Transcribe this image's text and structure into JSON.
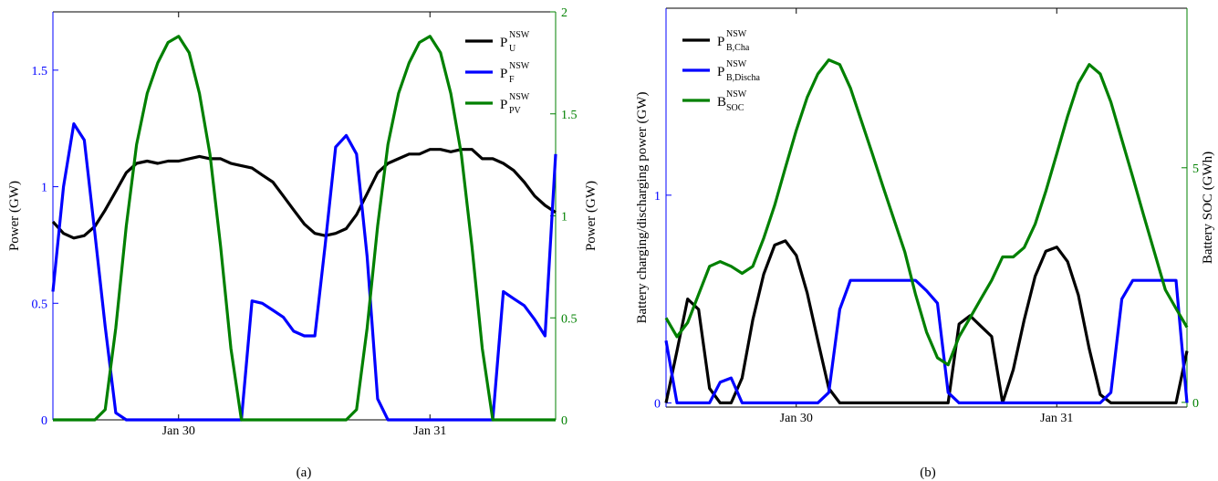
{
  "chart_data": [
    {
      "type": "line",
      "caption": "(a)",
      "x_ticks": [
        {
          "x": 30,
          "label": "Jan 30"
        },
        {
          "x": 31,
          "label": "Jan 31"
        }
      ],
      "xlim": [
        29.5,
        31.5
      ],
      "y_left": {
        "label": "Power (GW)",
        "lim": [
          0,
          1.75
        ],
        "ticks": [
          0,
          0.5,
          1,
          1.5
        ],
        "tick_labels": [
          "0",
          "0.5",
          "1",
          "1.5"
        ],
        "color": "#0000ff"
      },
      "y_right": {
        "label": "Power (GW)",
        "lim": [
          0,
          2
        ],
        "ticks": [
          0,
          0.5,
          1,
          1.5,
          2
        ],
        "tick_labels": [
          "0",
          "0.5",
          "1",
          "1.5",
          "2"
        ],
        "color": "#008000"
      },
      "legend_position": "top-right",
      "series": [
        {
          "key": "U",
          "base": "P",
          "sub": "U",
          "sup": "NSW",
          "color": "#000000",
          "axis": "left",
          "x": [
            29.5,
            29.542,
            29.583,
            29.625,
            29.667,
            29.708,
            29.75,
            29.792,
            29.833,
            29.875,
            29.917,
            29.958,
            30.0,
            30.042,
            30.083,
            30.125,
            30.167,
            30.208,
            30.25,
            30.292,
            30.333,
            30.375,
            30.417,
            30.458,
            30.5,
            30.542,
            30.583,
            30.625,
            30.667,
            30.708,
            30.75,
            30.792,
            30.833,
            30.875,
            30.917,
            30.958,
            31.0,
            31.042,
            31.083,
            31.125,
            31.167,
            31.208,
            31.25,
            31.292,
            31.333,
            31.375,
            31.417,
            31.458,
            31.5
          ],
          "y": [
            0.85,
            0.8,
            0.78,
            0.79,
            0.83,
            0.9,
            0.98,
            1.06,
            1.1,
            1.11,
            1.1,
            1.11,
            1.11,
            1.12,
            1.13,
            1.12,
            1.12,
            1.1,
            1.09,
            1.08,
            1.05,
            1.02,
            0.96,
            0.9,
            0.84,
            0.8,
            0.79,
            0.8,
            0.82,
            0.88,
            0.97,
            1.06,
            1.1,
            1.12,
            1.14,
            1.14,
            1.16,
            1.16,
            1.15,
            1.16,
            1.16,
            1.12,
            1.12,
            1.1,
            1.07,
            1.02,
            0.96,
            0.92,
            0.89
          ]
        },
        {
          "key": "F",
          "base": "P",
          "sub": "F",
          "sup": "NSW",
          "color": "#0000ff",
          "axis": "left",
          "x": [
            29.5,
            29.542,
            29.583,
            29.625,
            29.667,
            29.708,
            29.75,
            29.792,
            29.833,
            29.875,
            29.917,
            29.958,
            30.0,
            30.042,
            30.083,
            30.125,
            30.167,
            30.208,
            30.25,
            30.292,
            30.333,
            30.375,
            30.417,
            30.458,
            30.5,
            30.542,
            30.583,
            30.625,
            30.667,
            30.708,
            30.75,
            30.792,
            30.833,
            30.875,
            30.917,
            30.958,
            31.0,
            31.042,
            31.083,
            31.125,
            31.167,
            31.208,
            31.25,
            31.292,
            31.333,
            31.375,
            31.417,
            31.458,
            31.5
          ],
          "y": [
            0.55,
            1.0,
            1.27,
            1.2,
            0.8,
            0.4,
            0.03,
            0,
            0,
            0,
            0,
            0,
            0,
            0,
            0,
            0,
            0,
            0,
            0,
            0.51,
            0.5,
            0.47,
            0.44,
            0.38,
            0.36,
            0.36,
            0.75,
            1.17,
            1.22,
            1.14,
            0.7,
            0.09,
            0,
            0,
            0,
            0,
            0,
            0,
            0,
            0,
            0,
            0,
            0,
            0.55,
            0.52,
            0.49,
            0.43,
            0.36,
            1.14
          ]
        },
        {
          "key": "PV",
          "base": "P",
          "sub": "PV",
          "sup": "NSW",
          "color": "#008000",
          "axis": "right",
          "x": [
            29.5,
            29.542,
            29.583,
            29.625,
            29.667,
            29.708,
            29.75,
            29.792,
            29.833,
            29.875,
            29.917,
            29.958,
            30.0,
            30.042,
            30.083,
            30.125,
            30.167,
            30.208,
            30.25,
            30.292,
            30.333,
            30.375,
            30.417,
            30.458,
            30.5,
            30.542,
            30.583,
            30.625,
            30.667,
            30.708,
            30.75,
            30.792,
            30.833,
            30.875,
            30.917,
            30.958,
            31.0,
            31.042,
            31.083,
            31.125,
            31.167,
            31.208,
            31.25,
            31.292,
            31.333,
            31.375,
            31.417,
            31.458,
            31.5
          ],
          "y": [
            0,
            0,
            0,
            0,
            0,
            0.05,
            0.45,
            0.95,
            1.35,
            1.6,
            1.75,
            1.85,
            1.88,
            1.8,
            1.6,
            1.3,
            0.85,
            0.35,
            0,
            0,
            0,
            0,
            0,
            0,
            0,
            0,
            0,
            0,
            0,
            0.05,
            0.45,
            0.95,
            1.35,
            1.6,
            1.75,
            1.85,
            1.88,
            1.8,
            1.6,
            1.3,
            0.85,
            0.35,
            0,
            0,
            0,
            0,
            0,
            0,
            0
          ]
        }
      ]
    },
    {
      "type": "line",
      "caption": "(b)",
      "x_ticks": [
        {
          "x": 30,
          "label": "Jan 30"
        },
        {
          "x": 31,
          "label": "Jan 31"
        }
      ],
      "xlim": [
        29.5,
        31.5
      ],
      "y_left": {
        "label": "Battery charging/discharging power (GW)",
        "lim": [
          -0.02,
          1.9
        ],
        "ticks": [
          0,
          1
        ],
        "tick_labels": [
          "0",
          "1"
        ],
        "color": "#0000ff"
      },
      "y_right": {
        "label": "Battery SOC (GWh)",
        "lim": [
          -0.1,
          8.4
        ],
        "ticks": [
          0,
          5
        ],
        "tick_labels": [
          "0",
          "5"
        ],
        "color": "#008000"
      },
      "legend_position": "top-left",
      "series": [
        {
          "key": "Cha",
          "base": "P",
          "sub": "B,Cha",
          "sup": "NSW",
          "color": "#000000",
          "axis": "left",
          "x": [
            29.5,
            29.542,
            29.583,
            29.625,
            29.667,
            29.708,
            29.75,
            29.792,
            29.833,
            29.875,
            29.917,
            29.958,
            30.0,
            30.042,
            30.083,
            30.125,
            30.167,
            30.208,
            30.25,
            30.292,
            30.333,
            30.375,
            30.417,
            30.458,
            30.5,
            30.542,
            30.583,
            30.625,
            30.667,
            30.708,
            30.75,
            30.792,
            30.833,
            30.875,
            30.917,
            30.958,
            31.0,
            31.042,
            31.083,
            31.125,
            31.167,
            31.208,
            31.25,
            31.292,
            31.333,
            31.375,
            31.417,
            31.458,
            31.5
          ],
          "y": [
            0,
            0.25,
            0.5,
            0.45,
            0.07,
            0,
            0,
            0.12,
            0.4,
            0.62,
            0.76,
            0.78,
            0.71,
            0.53,
            0.3,
            0.07,
            0,
            0,
            0,
            0,
            0,
            0,
            0,
            0,
            0,
            0,
            0,
            0.38,
            0.42,
            0.37,
            0.32,
            0,
            0.16,
            0.4,
            0.61,
            0.73,
            0.75,
            0.68,
            0.52,
            0.26,
            0.04,
            0,
            0,
            0,
            0,
            0,
            0,
            0,
            0.25
          ]
        },
        {
          "key": "Discha",
          "base": "P",
          "sub": "B,Discha",
          "sup": "NSW",
          "color": "#0000ff",
          "axis": "left",
          "x": [
            29.5,
            29.542,
            29.583,
            29.625,
            29.667,
            29.708,
            29.75,
            29.792,
            29.833,
            29.875,
            29.917,
            29.958,
            30.0,
            30.042,
            30.083,
            30.125,
            30.167,
            30.208,
            30.25,
            30.292,
            30.333,
            30.375,
            30.417,
            30.458,
            30.5,
            30.542,
            30.583,
            30.625,
            30.667,
            30.708,
            30.75,
            30.792,
            30.833,
            30.875,
            30.917,
            30.958,
            31.0,
            31.042,
            31.083,
            31.125,
            31.167,
            31.208,
            31.25,
            31.292,
            31.333,
            31.375,
            31.417,
            31.458,
            31.5
          ],
          "y": [
            0.3,
            0,
            0,
            0,
            0,
            0.1,
            0.12,
            0,
            0,
            0,
            0,
            0,
            0,
            0,
            0,
            0.05,
            0.45,
            0.59,
            0.59,
            0.59,
            0.59,
            0.59,
            0.59,
            0.59,
            0.54,
            0.48,
            0.05,
            0,
            0,
            0,
            0,
            0,
            0,
            0,
            0,
            0,
            0,
            0,
            0,
            0,
            0,
            0.05,
            0.5,
            0.59,
            0.59,
            0.59,
            0.59,
            0.59,
            0
          ]
        },
        {
          "key": "SOC",
          "base": "B",
          "sub": "SOC",
          "sup": "NSW",
          "color": "#008000",
          "axis": "right",
          "x": [
            29.5,
            29.542,
            29.583,
            29.625,
            29.667,
            29.708,
            29.75,
            29.792,
            29.833,
            29.875,
            29.917,
            29.958,
            30.0,
            30.042,
            30.083,
            30.125,
            30.167,
            30.208,
            30.25,
            30.292,
            30.333,
            30.375,
            30.417,
            30.458,
            30.5,
            30.542,
            30.583,
            30.625,
            30.667,
            30.708,
            30.75,
            30.792,
            30.833,
            30.875,
            30.917,
            30.958,
            31.0,
            31.042,
            31.083,
            31.125,
            31.167,
            31.208,
            31.25,
            31.292,
            31.333,
            31.375,
            31.417,
            31.458,
            31.5
          ],
          "y": [
            1.8,
            1.4,
            1.7,
            2.3,
            2.9,
            3.0,
            2.9,
            2.75,
            2.9,
            3.5,
            4.2,
            5.0,
            5.8,
            6.5,
            7.0,
            7.3,
            7.2,
            6.7,
            6.0,
            5.3,
            4.6,
            3.9,
            3.2,
            2.3,
            1.5,
            0.95,
            0.8,
            1.4,
            1.8,
            2.2,
            2.6,
            3.1,
            3.1,
            3.3,
            3.8,
            4.5,
            5.3,
            6.1,
            6.8,
            7.2,
            7.0,
            6.4,
            5.6,
            4.8,
            4.0,
            3.2,
            2.4,
            2.0,
            1.6
          ]
        }
      ]
    }
  ]
}
